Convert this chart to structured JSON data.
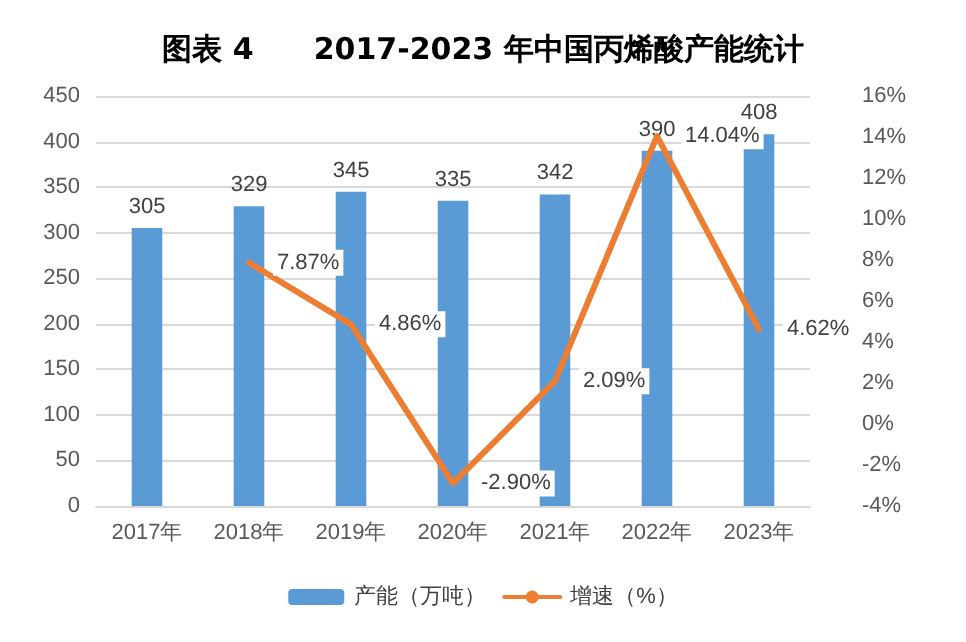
{
  "chart_data": {
    "type": "bar",
    "title": "图表 4　　2017-2023 年中国丙烯酸产能统计",
    "categories": [
      "2017年",
      "2018年",
      "2019年",
      "2020年",
      "2021年",
      "2022年",
      "2023年"
    ],
    "series": [
      {
        "name": "产能（万吨）",
        "color": "#5b9bd5",
        "values": [
          305,
          329,
          345,
          335,
          342,
          390,
          408
        ]
      },
      {
        "name": "增速（%）",
        "type": "line",
        "axis": "y2",
        "color": "#ed7d31",
        "values": [
          null,
          7.87,
          4.86,
          -2.9,
          2.09,
          14.04,
          4.62
        ],
        "value_labels": [
          null,
          "7.87%",
          "4.86%",
          "-2.90%",
          "2.09%",
          "14.04%",
          "4.62%"
        ]
      }
    ],
    "ylim": [
      0,
      450
    ],
    "yticks": [
      0,
      50,
      100,
      150,
      200,
      250,
      300,
      350,
      400,
      450
    ],
    "y2lim": [
      -4,
      16
    ],
    "y2ticks": [
      {
        "value": -4,
        "label": "-4%"
      },
      {
        "value": -2,
        "label": "-2%"
      },
      {
        "value": 0,
        "label": "0%"
      },
      {
        "value": 2,
        "label": "2%"
      },
      {
        "value": 4,
        "label": "4%"
      },
      {
        "value": 6,
        "label": "6%"
      },
      {
        "value": 8,
        "label": "8%"
      },
      {
        "value": 10,
        "label": "10%"
      },
      {
        "value": 12,
        "label": "12%"
      },
      {
        "value": 14,
        "label": "14%"
      },
      {
        "value": 16,
        "label": "16%"
      }
    ],
    "data_labels": true,
    "grid": "y",
    "legend": "bottom",
    "marker": "none",
    "line_style": "solid"
  }
}
